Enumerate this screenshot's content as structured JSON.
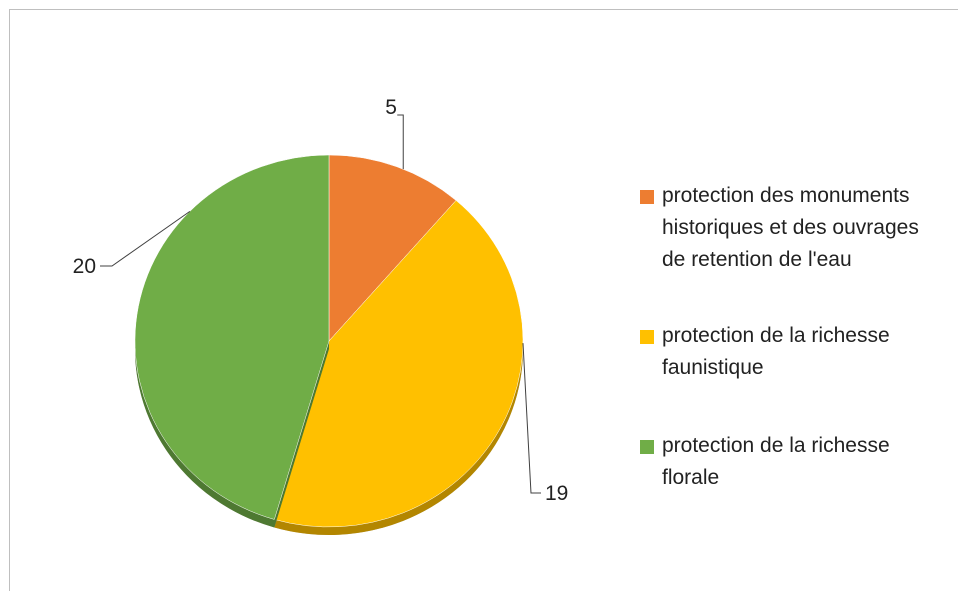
{
  "chart_data": {
    "type": "pie",
    "categories": [
      "protection des monuments historiques et des ouvrages de retention de l'eau",
      "protection de la richesse faunistique",
      "protection de la richesse florale"
    ],
    "values": [
      5,
      19,
      20
    ],
    "data_labels": [
      "5",
      "19",
      "20"
    ],
    "colors": [
      "#ED7D31",
      "#FFC000",
      "#70AD47"
    ],
    "legend_position": "right",
    "start_angle": "top, clockwise",
    "style": "3d-tilted"
  },
  "legend": {
    "items": [
      {
        "label": "protection des monuments historiques et des ouvrages de retention de l'eau",
        "color": "#ED7D31"
      },
      {
        "label": "protection de la richesse faunistique",
        "color": "#FFC000"
      },
      {
        "label": "protection de la richesse florale",
        "color": "#70AD47"
      }
    ]
  }
}
